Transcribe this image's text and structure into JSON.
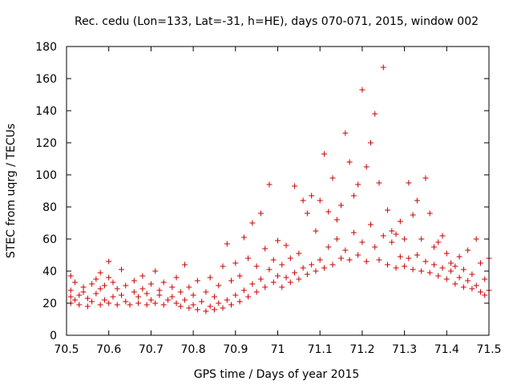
{
  "chart_data": {
    "type": "scatter",
    "title": "Rec. cedu (Lon=133, Lat=-31, h=HE), days 070-071, 2015, window 002",
    "xlabel": "GPS time / Days of year 2015",
    "ylabel": "STEC from uqrg / TECUs",
    "xlim": [
      70.5,
      71.5
    ],
    "ylim": [
      0,
      180
    ],
    "xticks": [
      70.5,
      70.6,
      70.7,
      70.8,
      70.9,
      71,
      71.1,
      71.2,
      71.3,
      71.4,
      71.5
    ],
    "xtick_labels": [
      "70.5",
      "70.6",
      "70.7",
      "70.8",
      "70.9",
      "71",
      "71.1",
      "71.2",
      "71.3",
      "71.4",
      "71.5"
    ],
    "yticks": [
      0,
      20,
      40,
      60,
      80,
      100,
      120,
      140,
      160,
      180
    ],
    "ytick_labels": [
      "0",
      "20",
      "40",
      "60",
      "80",
      "100",
      "120",
      "140",
      "160",
      "180"
    ],
    "marker": "+",
    "color": "#cc0000",
    "series": [
      {
        "name": "STEC",
        "points": [
          [
            70.51,
            20
          ],
          [
            70.51,
            24
          ],
          [
            70.51,
            28
          ],
          [
            70.51,
            37
          ],
          [
            70.52,
            22
          ],
          [
            70.52,
            33
          ],
          [
            70.53,
            19
          ],
          [
            70.53,
            25
          ],
          [
            70.54,
            27
          ],
          [
            70.54,
            30
          ],
          [
            70.55,
            18
          ],
          [
            70.55,
            23
          ],
          [
            70.56,
            21
          ],
          [
            70.56,
            32
          ],
          [
            70.57,
            26
          ],
          [
            70.57,
            35
          ],
          [
            70.58,
            19
          ],
          [
            70.58,
            29
          ],
          [
            70.58,
            39
          ],
          [
            70.59,
            22
          ],
          [
            70.59,
            31
          ],
          [
            70.6,
            20
          ],
          [
            70.6,
            36
          ],
          [
            70.6,
            46
          ],
          [
            70.61,
            24
          ],
          [
            70.61,
            33
          ],
          [
            70.62,
            19
          ],
          [
            70.62,
            29
          ],
          [
            70.63,
            25
          ],
          [
            70.63,
            41
          ],
          [
            70.64,
            21
          ],
          [
            70.64,
            31
          ],
          [
            70.65,
            19
          ],
          [
            70.66,
            27
          ],
          [
            70.66,
            34
          ],
          [
            70.67,
            20
          ],
          [
            70.67,
            24
          ],
          [
            70.68,
            29
          ],
          [
            70.68,
            37
          ],
          [
            70.69,
            19
          ],
          [
            70.69,
            26
          ],
          [
            70.7,
            22
          ],
          [
            70.7,
            32
          ],
          [
            70.71,
            20
          ],
          [
            70.71,
            40
          ],
          [
            70.72,
            25
          ],
          [
            70.72,
            28
          ],
          [
            70.73,
            19
          ],
          [
            70.73,
            33
          ],
          [
            70.74,
            22
          ],
          [
            70.75,
            24
          ],
          [
            70.75,
            30
          ],
          [
            70.76,
            20
          ],
          [
            70.76,
            36
          ],
          [
            70.77,
            18
          ],
          [
            70.77,
            27
          ],
          [
            70.78,
            22
          ],
          [
            70.78,
            44
          ],
          [
            70.79,
            17
          ],
          [
            70.79,
            30
          ],
          [
            70.8,
            19
          ],
          [
            70.8,
            25
          ],
          [
            70.81,
            16
          ],
          [
            70.81,
            34
          ],
          [
            70.82,
            21
          ],
          [
            70.83,
            15
          ],
          [
            70.83,
            27
          ],
          [
            70.84,
            18
          ],
          [
            70.84,
            36
          ],
          [
            70.85,
            16
          ],
          [
            70.85,
            24
          ],
          [
            70.86,
            20
          ],
          [
            70.86,
            31
          ],
          [
            70.87,
            17
          ],
          [
            70.87,
            43
          ],
          [
            70.88,
            22
          ],
          [
            70.88,
            57
          ],
          [
            70.89,
            19
          ],
          [
            70.89,
            34
          ],
          [
            70.9,
            25
          ],
          [
            70.9,
            45
          ],
          [
            70.91,
            21
          ],
          [
            70.91,
            37
          ],
          [
            70.92,
            28
          ],
          [
            70.92,
            61
          ],
          [
            70.93,
            24
          ],
          [
            70.93,
            48
          ],
          [
            70.94,
            32
          ],
          [
            70.94,
            70
          ],
          [
            70.95,
            27
          ],
          [
            70.95,
            43
          ],
          [
            70.96,
            35
          ],
          [
            70.96,
            76
          ],
          [
            70.97,
            30
          ],
          [
            70.97,
            54
          ],
          [
            70.98,
            41
          ],
          [
            70.98,
            94
          ],
          [
            70.99,
            33
          ],
          [
            70.99,
            47
          ],
          [
            71,
            37
          ],
          [
            71,
            59
          ],
          [
            71.01,
            30
          ],
          [
            71.01,
            44
          ],
          [
            71.02,
            36
          ],
          [
            71.02,
            56
          ],
          [
            71.03,
            33
          ],
          [
            71.03,
            48
          ],
          [
            71.04,
            39
          ],
          [
            71.04,
            93
          ],
          [
            71.05,
            35
          ],
          [
            71.05,
            51
          ],
          [
            71.06,
            42
          ],
          [
            71.06,
            84
          ],
          [
            71.07,
            38
          ],
          [
            71.07,
            76
          ],
          [
            71.08,
            44
          ],
          [
            71.08,
            87
          ],
          [
            71.09,
            40
          ],
          [
            71.09,
            65
          ],
          [
            71.1,
            47
          ],
          [
            71.1,
            84
          ],
          [
            71.11,
            42
          ],
          [
            71.11,
            113
          ],
          [
            71.12,
            55
          ],
          [
            71.12,
            77
          ],
          [
            71.13,
            44
          ],
          [
            71.13,
            98
          ],
          [
            71.14,
            60
          ],
          [
            71.14,
            72
          ],
          [
            71.15,
            48
          ],
          [
            71.15,
            81
          ],
          [
            71.16,
            53
          ],
          [
            71.16,
            126
          ],
          [
            71.17,
            47
          ],
          [
            71.17,
            108
          ],
          [
            71.18,
            64
          ],
          [
            71.18,
            87
          ],
          [
            71.19,
            50
          ],
          [
            71.19,
            94
          ],
          [
            71.2,
            58
          ],
          [
            71.2,
            153
          ],
          [
            71.21,
            46
          ],
          [
            71.21,
            105
          ],
          [
            71.22,
            69
          ],
          [
            71.22,
            120
          ],
          [
            71.23,
            55
          ],
          [
            71.23,
            138
          ],
          [
            71.24,
            47
          ],
          [
            71.24,
            95
          ],
          [
            71.25,
            62
          ],
          [
            71.25,
            167
          ],
          [
            71.26,
            44
          ],
          [
            71.26,
            78
          ],
          [
            71.27,
            58
          ],
          [
            71.27,
            65
          ],
          [
            71.28,
            42
          ],
          [
            71.28,
            63
          ],
          [
            71.29,
            49
          ],
          [
            71.29,
            71
          ],
          [
            71.3,
            43
          ],
          [
            71.3,
            60
          ],
          [
            71.31,
            48
          ],
          [
            71.31,
            95
          ],
          [
            71.32,
            41
          ],
          [
            71.32,
            75
          ],
          [
            71.33,
            50
          ],
          [
            71.33,
            84
          ],
          [
            71.34,
            40
          ],
          [
            71.34,
            60
          ],
          [
            71.35,
            46
          ],
          [
            71.35,
            98
          ],
          [
            71.36,
            39
          ],
          [
            71.36,
            76
          ],
          [
            71.37,
            44
          ],
          [
            71.37,
            55
          ],
          [
            71.38,
            37
          ],
          [
            71.38,
            58
          ],
          [
            71.39,
            42
          ],
          [
            71.39,
            62
          ],
          [
            71.4,
            35
          ],
          [
            71.4,
            51
          ],
          [
            71.41,
            40
          ],
          [
            71.41,
            45
          ],
          [
            71.42,
            32
          ],
          [
            71.42,
            43
          ],
          [
            71.43,
            36
          ],
          [
            71.43,
            49
          ],
          [
            71.44,
            30
          ],
          [
            71.44,
            41
          ],
          [
            71.45,
            34
          ],
          [
            71.45,
            53
          ],
          [
            71.46,
            29
          ],
          [
            71.46,
            38
          ],
          [
            71.47,
            31
          ],
          [
            71.47,
            60
          ],
          [
            71.48,
            27
          ],
          [
            71.48,
            45
          ],
          [
            71.49,
            25
          ],
          [
            71.49,
            35
          ],
          [
            71.5,
            28
          ],
          [
            71.5,
            48
          ]
        ]
      }
    ]
  }
}
